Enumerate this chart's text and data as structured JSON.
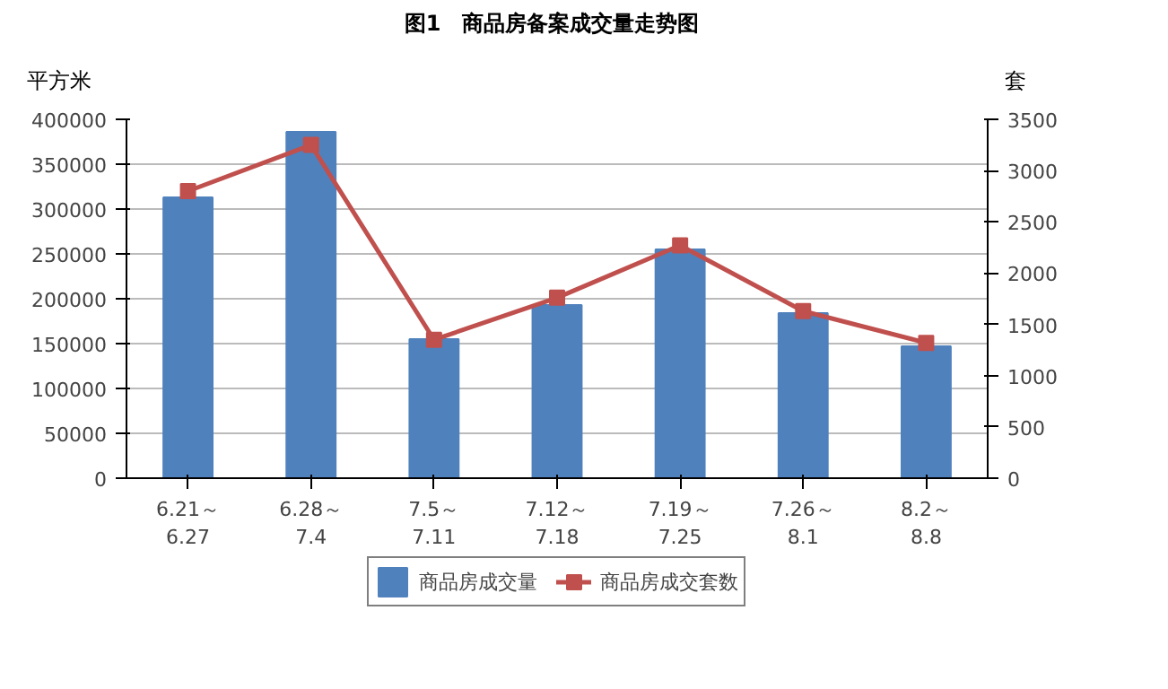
{
  "chart_data": {
    "type": "bar",
    "title": "图1　商品房备案成交量走势图",
    "ylabel": "平方米",
    "y2label": "套",
    "categories": [
      "6.21～\n6.27",
      "6.28～\n7.4",
      "7.5～\n7.11",
      "7.12～\n7.18",
      "7.19～\n7.25",
      "7.26～\n8.1",
      "8.2～\n8.8"
    ],
    "series": [
      {
        "name": "商品房成交量",
        "color": "#4f81bd",
        "values": [
          313000,
          386000,
          155000,
          193000,
          255000,
          184000,
          147000
        ]
      },
      {
        "name": "商品房成交套数",
        "type": "line",
        "axis": "y2",
        "color": "#c0504d",
        "marker": "square",
        "values": [
          2800,
          3250,
          1350,
          1760,
          2270,
          1630,
          1320
        ]
      }
    ],
    "ylim": [
      0,
      400000
    ],
    "yticks": [
      0,
      50000,
      100000,
      150000,
      200000,
      250000,
      300000,
      350000,
      400000
    ],
    "y2lim": [
      0,
      3500
    ],
    "y2ticks": [
      0,
      500,
      1000,
      1500,
      2000,
      2500,
      3000,
      3500
    ],
    "grid": "y",
    "legend": "bottom"
  }
}
